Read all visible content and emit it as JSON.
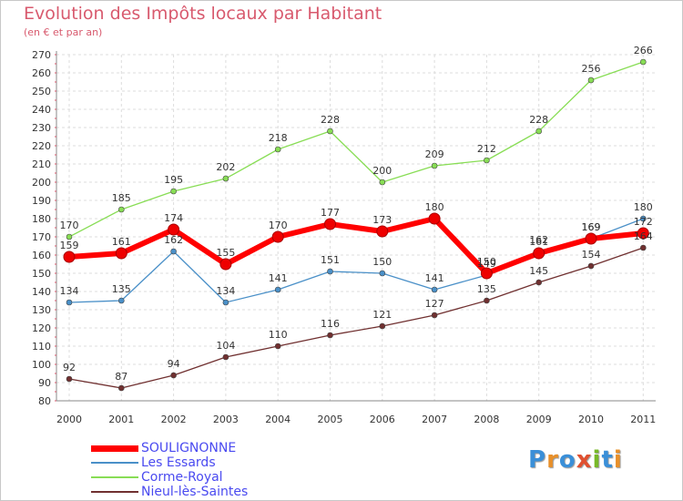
{
  "header": {
    "title": "Evolution des Impôts locaux par Habitant",
    "subtitle": "(en € et par an)"
  },
  "logo": {
    "text": "Proxiti"
  },
  "chart_data": {
    "type": "line",
    "title": "Evolution des Impôts locaux par Habitant",
    "subtitle": "(en € et par an)",
    "xlabel": "",
    "ylabel": "",
    "x": [
      "2000",
      "2001",
      "2002",
      "2003",
      "2004",
      "2005",
      "2006",
      "2007",
      "2008",
      "2009",
      "2010",
      "2011"
    ],
    "ylim": [
      80,
      270
    ],
    "yticks": [
      80,
      90,
      100,
      110,
      120,
      130,
      140,
      150,
      160,
      170,
      180,
      190,
      200,
      210,
      220,
      230,
      240,
      250,
      260,
      270
    ],
    "grid": true,
    "legend_position": "bottom-left",
    "series": [
      {
        "name": "SOULIGNONNE",
        "color": "#ff0000",
        "values": [
          159,
          161,
          174,
          155,
          170,
          177,
          173,
          180,
          150,
          161,
          169,
          172
        ]
      },
      {
        "name": "Les Essards",
        "color": "#4a90c8",
        "values": [
          134,
          135,
          162,
          134,
          141,
          151,
          150,
          141,
          149,
          162,
          169,
          180
        ]
      },
      {
        "name": "Corme-Royal",
        "color": "#88dd55",
        "values": [
          170,
          185,
          195,
          202,
          218,
          228,
          200,
          209,
          212,
          228,
          256,
          266
        ]
      },
      {
        "name": "Nieul-lès-Saintes",
        "color": "#703030",
        "values": [
          92,
          87,
          94,
          104,
          110,
          116,
          121,
          127,
          135,
          145,
          154,
          164
        ]
      }
    ]
  }
}
